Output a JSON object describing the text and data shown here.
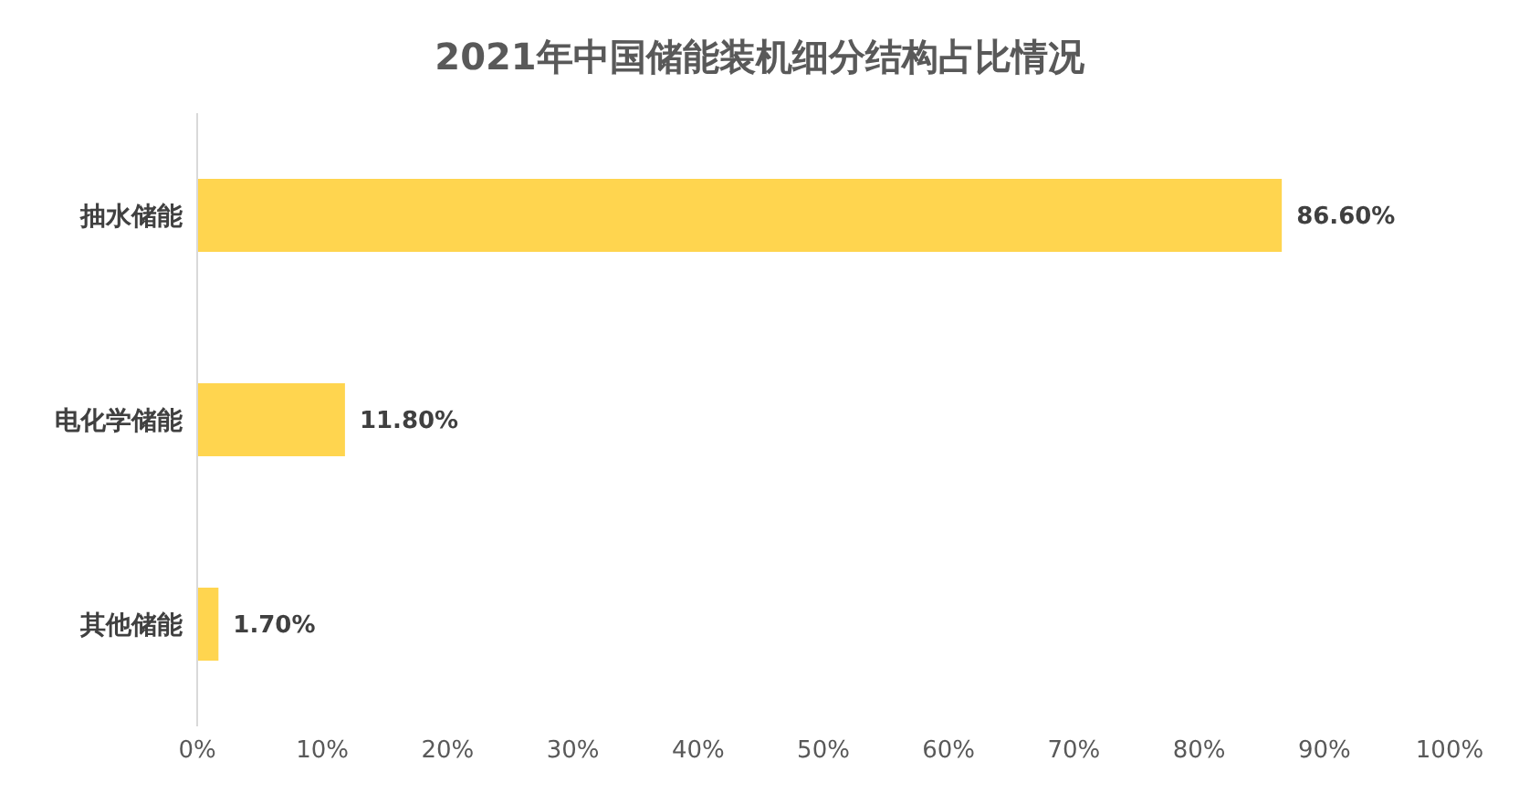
{
  "chart_data": {
    "type": "bar",
    "orientation": "horizontal",
    "title": "2021年中国储能装机细分结构占比情况",
    "categories": [
      "抽水储能",
      "电化学储能",
      "其他储能"
    ],
    "values": [
      86.6,
      11.8,
      1.7
    ],
    "value_labels": [
      "86.60%",
      "11.80%",
      "1.70%"
    ],
    "color": "#ffd54f",
    "xlim": [
      0,
      100
    ],
    "xticks": [
      {
        "value": 0,
        "label": "0%"
      },
      {
        "value": 10,
        "label": "10%"
      },
      {
        "value": 20,
        "label": "20%"
      },
      {
        "value": 30,
        "label": "30%"
      },
      {
        "value": 40,
        "label": "40%"
      },
      {
        "value": 50,
        "label": "50%"
      },
      {
        "value": 60,
        "label": "60%"
      },
      {
        "value": 70,
        "label": "70%"
      },
      {
        "value": 80,
        "label": "80%"
      },
      {
        "value": 90,
        "label": "90%"
      },
      {
        "value": 100,
        "label": "100%"
      }
    ],
    "grid": false,
    "legend": false
  }
}
